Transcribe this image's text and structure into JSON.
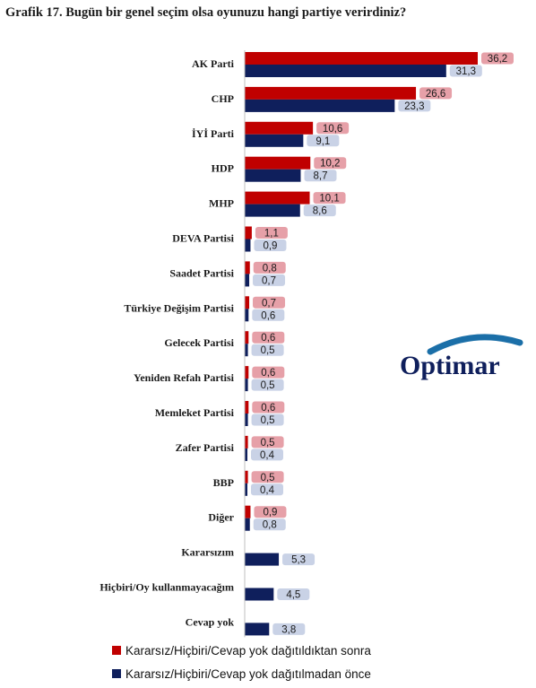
{
  "chart_data": {
    "type": "bar",
    "orientation": "horizontal",
    "title": "Grafik 17. Bugün bir genel seçim olsa oyunuzu hangi partiye verirdiniz?",
    "categories": [
      "AK Parti",
      "CHP",
      "İYİ Parti",
      "HDP",
      "MHP",
      "DEVA Partisi",
      "Saadet Partisi",
      "Türkiye Değişim Partisi",
      "Gelecek Partisi",
      "Yeniden Refah Partisi",
      "Memleket Partisi",
      "Zafer Partisi",
      "BBP",
      "Diğer",
      "Kararsızım",
      "Hiçbiri/Oy kullanmayacağım",
      "Cevap yok"
    ],
    "series": [
      {
        "name": "Kararsız/Hiçbiri/Cevap yok dağıtıldıktan sonra",
        "color": "#c00000",
        "label_bg": "#e6a0a8",
        "values": [
          36.2,
          26.6,
          10.6,
          10.2,
          10.1,
          1.1,
          0.8,
          0.7,
          0.6,
          0.6,
          0.6,
          0.5,
          0.5,
          0.9,
          null,
          null,
          null
        ],
        "labels": [
          "36,2",
          "26,6",
          "10,6",
          "10,2",
          "10,1",
          "1,1",
          "0,8",
          "0,7",
          "0,6",
          "0,6",
          "0,6",
          "0,5",
          "0,5",
          "0,9",
          "",
          "",
          ""
        ]
      },
      {
        "name": "Kararsız/Hiçbiri/Cevap yok dağıtılmadan önce",
        "color": "#0f1f5c",
        "label_bg": "#c9d2e6",
        "values": [
          31.3,
          23.3,
          9.1,
          8.7,
          8.6,
          0.9,
          0.7,
          0.6,
          0.5,
          0.5,
          0.5,
          0.4,
          0.4,
          0.8,
          5.3,
          4.5,
          3.8
        ],
        "labels": [
          "31,3",
          "23,3",
          "9,1",
          "8,7",
          "8,6",
          "0,9",
          "0,7",
          "0,6",
          "0,5",
          "0,5",
          "0,5",
          "0,4",
          "0,4",
          "0,8",
          "5,3",
          "4,5",
          "3,8"
        ]
      }
    ],
    "xlim": [
      0,
      36.2
    ],
    "grid": false,
    "legend_position": "bottom"
  },
  "logo": {
    "text": "Optimar",
    "color": "#0f1f5c",
    "arc_color": "#1b6fa8"
  }
}
